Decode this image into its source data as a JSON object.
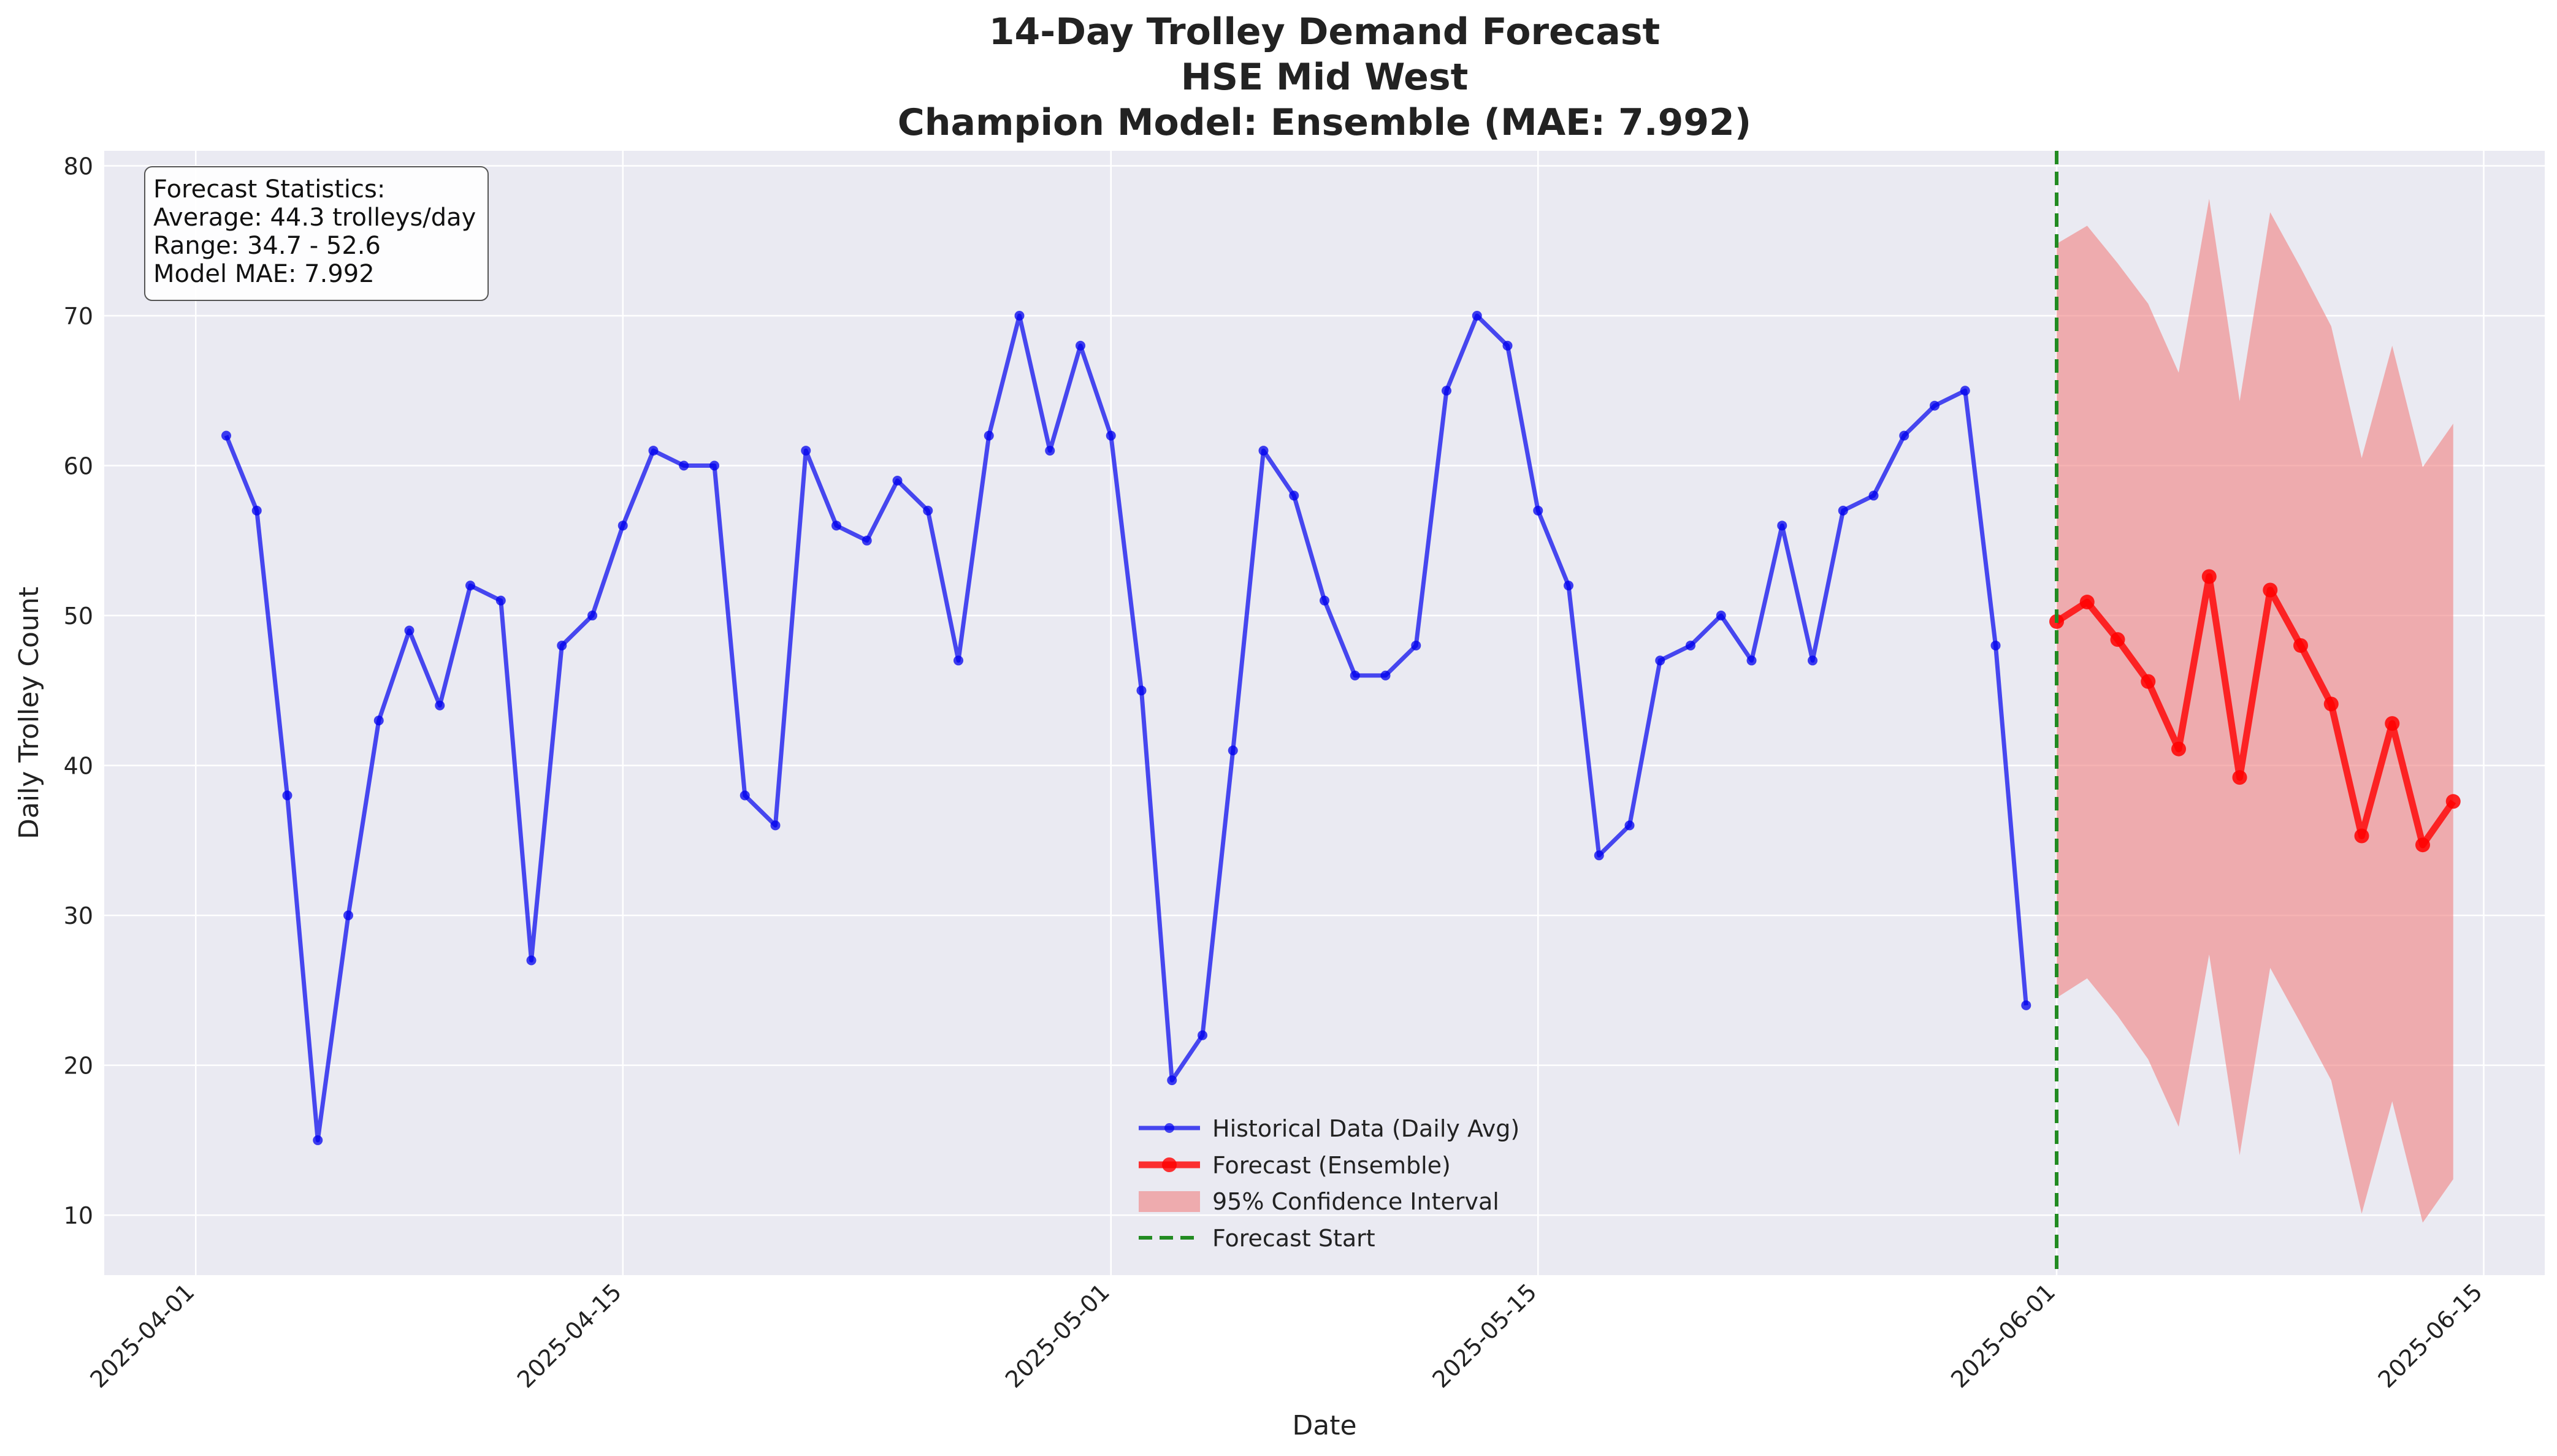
{
  "chart_data": {
    "type": "line",
    "title": [
      "14-Day Trolley Demand Forecast",
      "HSE Mid West",
      "Champion Model: Ensemble (MAE: 7.992)"
    ],
    "xlabel": "Date",
    "ylabel": "Daily Trolley Count",
    "x_ticks": [
      "2025-04-01",
      "2025-04-15",
      "2025-05-01",
      "2025-05-15",
      "2025-06-01",
      "2025-06-15"
    ],
    "y_ticks": [
      10,
      20,
      30,
      40,
      50,
      60,
      70,
      80
    ],
    "xlim": [
      "2025-03-29",
      "2025-06-17"
    ],
    "ylim": [
      6,
      81
    ],
    "grid": true,
    "legend_position": "bottom-center",
    "historical": {
      "name": "Historical Data (Daily Avg)",
      "color": "#0000ee",
      "start_date": "2025-04-02",
      "values": [
        62,
        57,
        38,
        15,
        30,
        43,
        49,
        44,
        52,
        51,
        27,
        48,
        50,
        56,
        61,
        60,
        60,
        38,
        36,
        61,
        56,
        55,
        59,
        57,
        47,
        62,
        70,
        61,
        68,
        62,
        45,
        19,
        22,
        41,
        61,
        58,
        51,
        46,
        46,
        48,
        65,
        70,
        68,
        57,
        52,
        34,
        36,
        47,
        48,
        50,
        47,
        56,
        47,
        57,
        58,
        62,
        64,
        65,
        48,
        24
      ]
    },
    "forecast": {
      "name": "Forecast (Ensemble)",
      "color": "#ff0000",
      "start_date": "2025-06-01",
      "values": [
        49.6,
        50.9,
        48.4,
        45.6,
        41.1,
        52.6,
        39.2,
        51.7,
        48.0,
        44.1,
        35.3,
        42.8,
        34.7,
        37.6
      ]
    },
    "confidence_interval": {
      "name": "95% Confidence Interval",
      "color": "#f08080",
      "upper": [
        74.8,
        76.0,
        73.5,
        70.8,
        66.2,
        77.8,
        64.3,
        76.9,
        73.2,
        69.3,
        60.5,
        68.0,
        59.9,
        62.8
      ],
      "lower": [
        24.5,
        25.8,
        23.3,
        20.4,
        15.9,
        27.4,
        14.0,
        26.5,
        22.8,
        19.0,
        10.1,
        17.6,
        9.5,
        12.4
      ]
    },
    "forecast_start": {
      "name": "Forecast Start",
      "date": "2025-06-01",
      "color": "#228b22"
    },
    "stats_box": {
      "heading": "Forecast Statistics:",
      "average": "Average: 44.3 trolleys/day",
      "range": "Range: 34.7 - 52.6",
      "mae": "Model MAE: 7.992"
    }
  }
}
